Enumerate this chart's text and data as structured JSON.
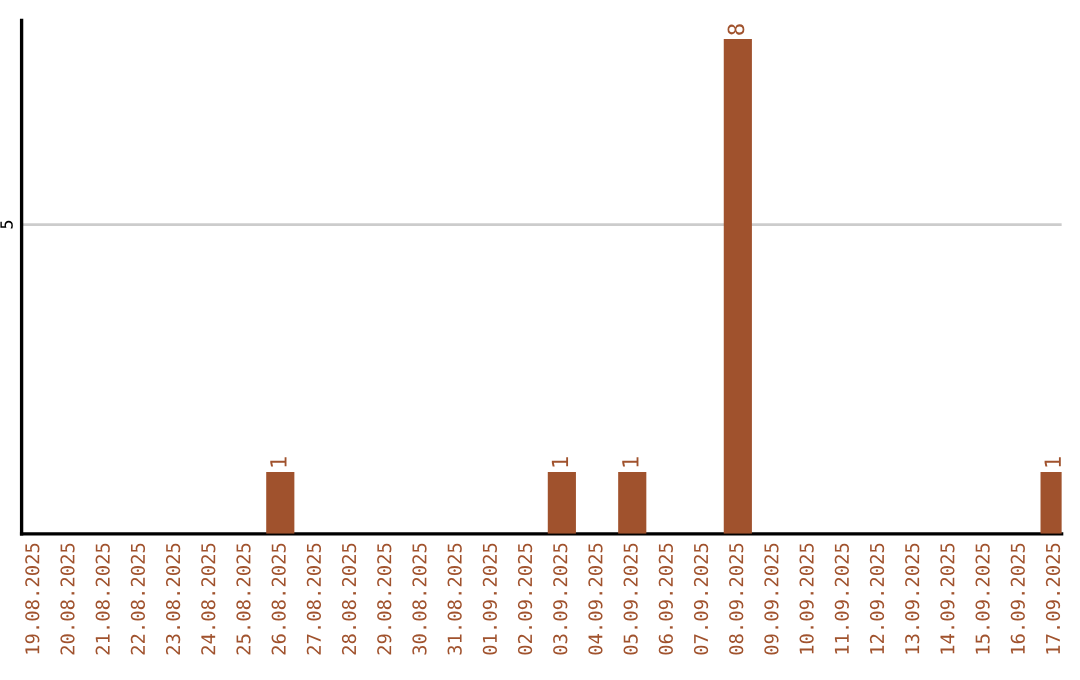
{
  "chart_data": {
    "type": "bar",
    "categories": [
      "19.08.2025",
      "20.08.2025",
      "21.08.2025",
      "22.08.2025",
      "23.08.2025",
      "24.08.2025",
      "25.08.2025",
      "26.08.2025",
      "27.08.2025",
      "28.08.2025",
      "29.08.2025",
      "30.08.2025",
      "31.08.2025",
      "01.09.2025",
      "02.09.2025",
      "03.09.2025",
      "04.09.2025",
      "05.09.2025",
      "06.09.2025",
      "07.09.2025",
      "08.09.2025",
      "09.09.2025",
      "10.09.2025",
      "11.09.2025",
      "12.09.2025",
      "13.09.2025",
      "14.09.2025",
      "15.09.2025",
      "16.09.2025",
      "17.09.2025"
    ],
    "values": [
      0,
      0,
      0,
      0,
      0,
      0,
      0,
      1,
      0,
      0,
      0,
      0,
      0,
      0,
      0,
      1,
      0,
      1,
      0,
      0,
      8,
      0,
      0,
      0,
      0,
      0,
      0,
      0,
      0,
      1
    ],
    "value_labels": [
      null,
      null,
      null,
      null,
      null,
      null,
      null,
      "1",
      null,
      null,
      null,
      null,
      null,
      null,
      null,
      "1",
      null,
      "1",
      null,
      null,
      "8",
      null,
      null,
      null,
      null,
      null,
      null,
      null,
      null,
      "1"
    ],
    "color": "#a0522d",
    "ylim": [
      0,
      8.3
    ],
    "yticks": [
      5
    ],
    "grid": "y"
  }
}
